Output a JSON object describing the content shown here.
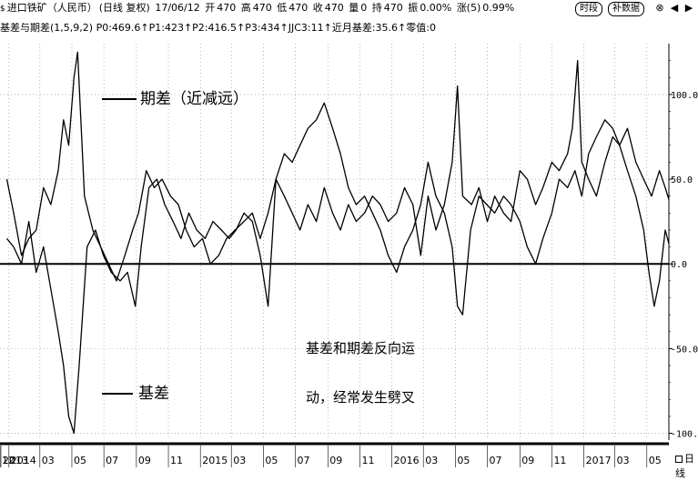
{
  "header": {
    "symbol_icon": "dollar-glyph",
    "symbol": "进口铁矿（人民币）",
    "period": "(日线 复权)",
    "date": "17/06/12",
    "open_label": "开",
    "open": "470",
    "high_label": "高",
    "high": "470",
    "low_label": "低",
    "low": "470",
    "close_label": "收",
    "close": "470",
    "volume_label": "量",
    "volume": "0",
    "oi_label": "持",
    "oi": "470",
    "amplitude_label": "振",
    "amplitude": "0.00%",
    "change_label": "涨(5)",
    "change": "0.99%",
    "tab_intraday": "时段",
    "tab_fill_data": "补数据"
  },
  "indicator": {
    "text": "基差与期差(1,5,9,2) P0:469.6↑P1:423↑P2:416.5↑P3:434↑JJC3:11↑近月基差:35.6↑零值:0"
  },
  "annotations": {
    "spread_label": "期差（近减远）",
    "basis_label": "基差",
    "note_line1": "基差和期差反向运",
    "note_line2": "动，经常发生劈叉"
  },
  "bottom_tab": "日线",
  "chart_data": {
    "type": "line",
    "ylim": [
      -104,
      130
    ],
    "yticks": [
      "100.0",
      "50.0",
      "0.0",
      "-50.0",
      "-100.0"
    ],
    "ytick_values": [
      100,
      50,
      0,
      -50,
      -100
    ],
    "x_range": [
      "2013-12-15",
      "2017-06-12"
    ],
    "xticks": [
      {
        "label": "2013",
        "date": "2013-12-01"
      },
      {
        "label": "12",
        "date": "2013-12-15"
      },
      {
        "label": "2014",
        "date": "2014-01-01"
      },
      {
        "label": "03",
        "date": "2014-03-01"
      },
      {
        "label": "05",
        "date": "2014-05-01"
      },
      {
        "label": "07",
        "date": "2014-07-01"
      },
      {
        "label": "09",
        "date": "2014-09-01"
      },
      {
        "label": "11",
        "date": "2014-11-01"
      },
      {
        "label": "2015",
        "date": "2015-01-01"
      },
      {
        "label": "03",
        "date": "2015-03-01"
      },
      {
        "label": "05",
        "date": "2015-05-01"
      },
      {
        "label": "07",
        "date": "2015-07-01"
      },
      {
        "label": "09",
        "date": "2015-09-01"
      },
      {
        "label": "11",
        "date": "2015-11-01"
      },
      {
        "label": "2016",
        "date": "2016-01-01"
      },
      {
        "label": "03",
        "date": "2016-03-01"
      },
      {
        "label": "05",
        "date": "2016-05-01"
      },
      {
        "label": "07",
        "date": "2016-07-01"
      },
      {
        "label": "09",
        "date": "2016-09-01"
      },
      {
        "label": "11",
        "date": "2016-11-01"
      },
      {
        "label": "2017",
        "date": "2017-01-01"
      },
      {
        "label": "03",
        "date": "2017-03-01"
      },
      {
        "label": "05",
        "date": "2017-05-01"
      }
    ],
    "series": [
      {
        "name": "期差（近减远）",
        "color": "#000000",
        "points": [
          [
            "2013-12-28",
            50
          ],
          [
            "2014-01-10",
            30
          ],
          [
            "2014-01-25",
            5
          ],
          [
            "2014-02-08",
            15
          ],
          [
            "2014-02-22",
            20
          ],
          [
            "2014-03-08",
            45
          ],
          [
            "2014-03-22",
            35
          ],
          [
            "2014-04-05",
            55
          ],
          [
            "2014-04-15",
            85
          ],
          [
            "2014-04-25",
            70
          ],
          [
            "2014-05-05",
            110
          ],
          [
            "2014-05-12",
            125
          ],
          [
            "2014-05-25",
            40
          ],
          [
            "2014-06-10",
            20
          ],
          [
            "2014-06-25",
            10
          ],
          [
            "2014-07-10",
            0
          ],
          [
            "2014-07-25",
            -10
          ],
          [
            "2014-08-10",
            5
          ],
          [
            "2014-08-25",
            20
          ],
          [
            "2014-09-05",
            30
          ],
          [
            "2014-09-20",
            55
          ],
          [
            "2014-10-05",
            45
          ],
          [
            "2014-10-20",
            50
          ],
          [
            "2014-11-05",
            40
          ],
          [
            "2014-11-20",
            35
          ],
          [
            "2014-12-05",
            20
          ],
          [
            "2014-12-20",
            10
          ],
          [
            "2015-01-05",
            15
          ],
          [
            "2015-01-20",
            0
          ],
          [
            "2015-02-05",
            5
          ],
          [
            "2015-02-20",
            15
          ],
          [
            "2015-03-08",
            20
          ],
          [
            "2015-03-25",
            25
          ],
          [
            "2015-04-10",
            30
          ],
          [
            "2015-04-25",
            15
          ],
          [
            "2015-05-10",
            30
          ],
          [
            "2015-05-25",
            50
          ],
          [
            "2015-06-10",
            40
          ],
          [
            "2015-06-25",
            30
          ],
          [
            "2015-07-10",
            20
          ],
          [
            "2015-07-25",
            35
          ],
          [
            "2015-08-10",
            25
          ],
          [
            "2015-08-25",
            45
          ],
          [
            "2015-09-10",
            30
          ],
          [
            "2015-09-25",
            20
          ],
          [
            "2015-10-10",
            35
          ],
          [
            "2015-10-25",
            25
          ],
          [
            "2015-11-10",
            30
          ],
          [
            "2015-11-25",
            40
          ],
          [
            "2015-12-10",
            35
          ],
          [
            "2015-12-25",
            25
          ],
          [
            "2016-01-10",
            30
          ],
          [
            "2016-01-25",
            45
          ],
          [
            "2016-02-10",
            35
          ],
          [
            "2016-02-25",
            5
          ],
          [
            "2016-03-10",
            40
          ],
          [
            "2016-03-25",
            20
          ],
          [
            "2016-04-10",
            35
          ],
          [
            "2016-04-25",
            60
          ],
          [
            "2016-05-05",
            105
          ],
          [
            "2016-05-15",
            40
          ],
          [
            "2016-06-01",
            35
          ],
          [
            "2016-06-15",
            45
          ],
          [
            "2016-07-01",
            25
          ],
          [
            "2016-07-15",
            40
          ],
          [
            "2016-08-01",
            30
          ],
          [
            "2016-08-15",
            25
          ],
          [
            "2016-09-01",
            55
          ],
          [
            "2016-09-15",
            50
          ],
          [
            "2016-10-01",
            35
          ],
          [
            "2016-10-15",
            45
          ],
          [
            "2016-11-01",
            60
          ],
          [
            "2016-11-15",
            55
          ],
          [
            "2016-12-01",
            65
          ],
          [
            "2016-12-10",
            80
          ],
          [
            "2016-12-20",
            120
          ],
          [
            "2016-12-28",
            60
          ],
          [
            "2017-01-10",
            50
          ],
          [
            "2017-01-25",
            40
          ],
          [
            "2017-02-10",
            60
          ],
          [
            "2017-02-25",
            75
          ],
          [
            "2017-03-10",
            70
          ],
          [
            "2017-03-25",
            80
          ],
          [
            "2017-04-10",
            60
          ],
          [
            "2017-04-25",
            50
          ],
          [
            "2017-05-10",
            40
          ],
          [
            "2017-05-25",
            55
          ],
          [
            "2017-06-05",
            45
          ],
          [
            "2017-06-12",
            38
          ]
        ]
      },
      {
        "name": "基差",
        "color": "#000000",
        "points": [
          [
            "2013-12-28",
            15
          ],
          [
            "2014-01-10",
            10
          ],
          [
            "2014-01-25",
            0
          ],
          [
            "2014-02-08",
            25
          ],
          [
            "2014-02-22",
            -5
          ],
          [
            "2014-03-08",
            10
          ],
          [
            "2014-03-22",
            -15
          ],
          [
            "2014-04-05",
            -40
          ],
          [
            "2014-04-15",
            -60
          ],
          [
            "2014-04-25",
            -90
          ],
          [
            "2014-05-05",
            -100
          ],
          [
            "2014-05-15",
            -60
          ],
          [
            "2014-05-30",
            10
          ],
          [
            "2014-06-15",
            20
          ],
          [
            "2014-06-30",
            5
          ],
          [
            "2014-07-15",
            -5
          ],
          [
            "2014-08-01",
            -10
          ],
          [
            "2014-08-15",
            -5
          ],
          [
            "2014-08-30",
            -25
          ],
          [
            "2014-09-10",
            10
          ],
          [
            "2014-09-25",
            45
          ],
          [
            "2014-10-10",
            50
          ],
          [
            "2014-10-25",
            35
          ],
          [
            "2014-11-10",
            25
          ],
          [
            "2014-11-25",
            15
          ],
          [
            "2014-12-10",
            30
          ],
          [
            "2014-12-25",
            20
          ],
          [
            "2015-01-10",
            15
          ],
          [
            "2015-01-25",
            25
          ],
          [
            "2015-02-10",
            20
          ],
          [
            "2015-02-25",
            15
          ],
          [
            "2015-03-10",
            20
          ],
          [
            "2015-03-25",
            30
          ],
          [
            "2015-04-10",
            25
          ],
          [
            "2015-04-25",
            5
          ],
          [
            "2015-05-10",
            -25
          ],
          [
            "2015-05-25",
            50
          ],
          [
            "2015-06-10",
            65
          ],
          [
            "2015-06-25",
            60
          ],
          [
            "2015-07-10",
            70
          ],
          [
            "2015-07-25",
            80
          ],
          [
            "2015-08-10",
            85
          ],
          [
            "2015-08-25",
            95
          ],
          [
            "2015-09-10",
            80
          ],
          [
            "2015-09-25",
            65
          ],
          [
            "2015-10-10",
            45
          ],
          [
            "2015-10-25",
            35
          ],
          [
            "2015-11-10",
            40
          ],
          [
            "2015-11-25",
            30
          ],
          [
            "2015-12-10",
            20
          ],
          [
            "2015-12-25",
            5
          ],
          [
            "2016-01-10",
            -5
          ],
          [
            "2016-01-25",
            10
          ],
          [
            "2016-02-10",
            20
          ],
          [
            "2016-02-25",
            35
          ],
          [
            "2016-03-10",
            60
          ],
          [
            "2016-03-25",
            40
          ],
          [
            "2016-04-10",
            30
          ],
          [
            "2016-04-25",
            10
          ],
          [
            "2016-05-05",
            -25
          ],
          [
            "2016-05-15",
            -30
          ],
          [
            "2016-05-30",
            20
          ],
          [
            "2016-06-15",
            40
          ],
          [
            "2016-06-30",
            35
          ],
          [
            "2016-07-15",
            30
          ],
          [
            "2016-08-01",
            40
          ],
          [
            "2016-08-15",
            35
          ],
          [
            "2016-09-01",
            25
          ],
          [
            "2016-09-15",
            10
          ],
          [
            "2016-10-01",
            0
          ],
          [
            "2016-10-15",
            15
          ],
          [
            "2016-11-01",
            30
          ],
          [
            "2016-11-15",
            50
          ],
          [
            "2016-12-01",
            45
          ],
          [
            "2016-12-15",
            55
          ],
          [
            "2016-12-28",
            40
          ],
          [
            "2017-01-10",
            65
          ],
          [
            "2017-01-25",
            75
          ],
          [
            "2017-02-10",
            85
          ],
          [
            "2017-02-25",
            80
          ],
          [
            "2017-03-10",
            70
          ],
          [
            "2017-03-25",
            55
          ],
          [
            "2017-04-10",
            40
          ],
          [
            "2017-04-25",
            20
          ],
          [
            "2017-05-05",
            -5
          ],
          [
            "2017-05-15",
            -25
          ],
          [
            "2017-05-25",
            -10
          ],
          [
            "2017-06-05",
            20
          ],
          [
            "2017-06-12",
            12
          ]
        ]
      }
    ],
    "zero_line": 0
  }
}
